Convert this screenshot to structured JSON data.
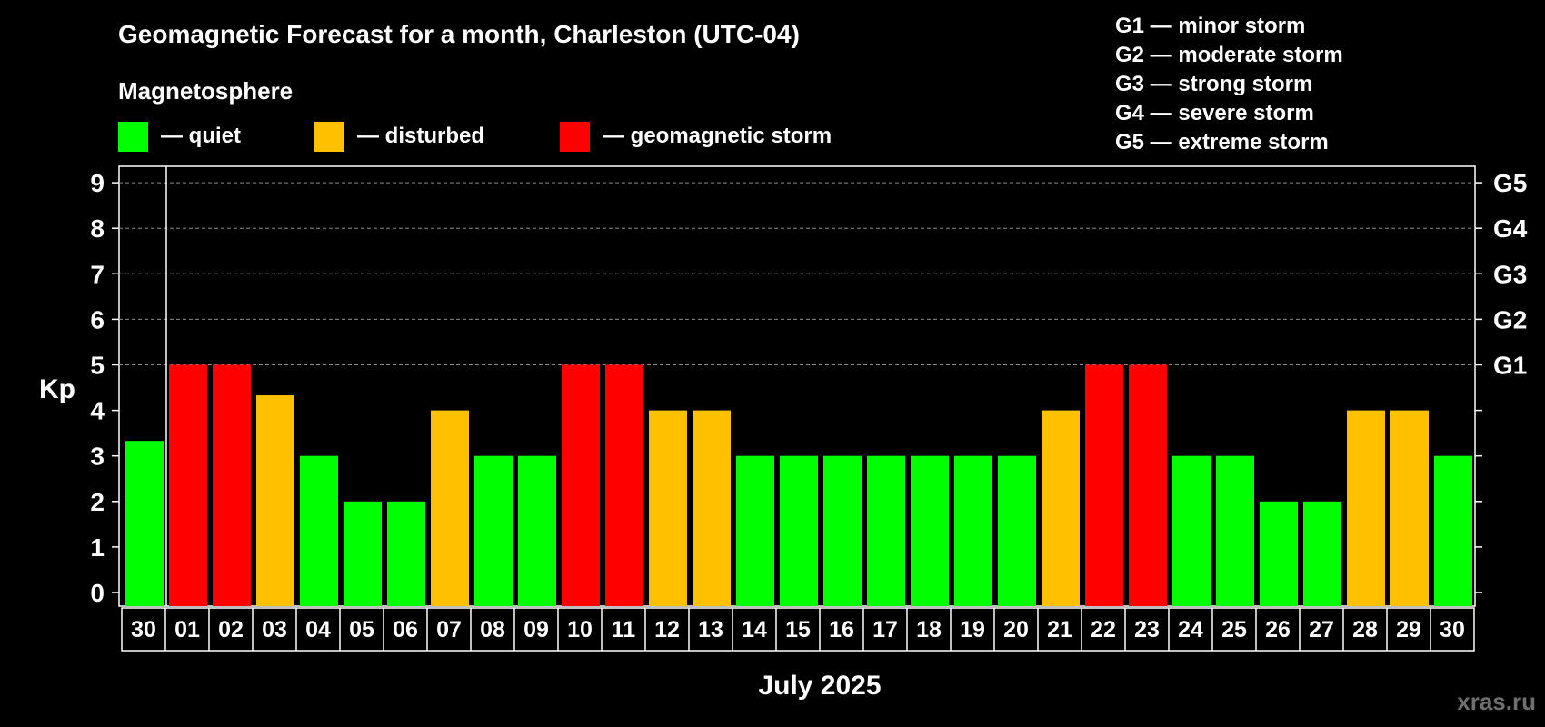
{
  "title": "Geomagnetic Forecast for a month, Charleston (UTC-04)",
  "legend": {
    "heading": "Magnetosphere",
    "items": [
      {
        "label": "— quiet",
        "color": "#00ff00"
      },
      {
        "label": "— disturbed",
        "color": "#ffc000"
      },
      {
        "label": "— geomagnetic storm",
        "color": "#ff0000"
      }
    ]
  },
  "storm_scale": [
    "G1 — minor storm",
    "G2 — moderate storm",
    "G3 — strong storm",
    "G4 — severe storm",
    "G5 — extreme storm"
  ],
  "watermark": "xras.ru",
  "chart_data": {
    "type": "bar",
    "title": "Geomagnetic Forecast for a month, Charleston (UTC-04)",
    "xlabel": "July 2025",
    "ylabel": "Kp",
    "ylim": [
      0,
      9
    ],
    "yticks": [
      "0",
      "1",
      "2",
      "3",
      "4",
      "5",
      "6",
      "7",
      "8",
      "9"
    ],
    "right_axis": [
      {
        "value": 5,
        "label": "G1"
      },
      {
        "value": 6,
        "label": "G2"
      },
      {
        "value": 7,
        "label": "G3"
      },
      {
        "value": 8,
        "label": "G4"
      },
      {
        "value": 9,
        "label": "G5"
      }
    ],
    "grid": true,
    "categories": [
      "30",
      "01",
      "02",
      "03",
      "04",
      "05",
      "06",
      "07",
      "08",
      "09",
      "10",
      "11",
      "12",
      "13",
      "14",
      "15",
      "16",
      "17",
      "18",
      "19",
      "20",
      "21",
      "22",
      "23",
      "24",
      "25",
      "26",
      "27",
      "28",
      "29",
      "30"
    ],
    "values": [
      3.33,
      5,
      5,
      4.33,
      3,
      2,
      2,
      4,
      3,
      3,
      5,
      5,
      4,
      4,
      3,
      3,
      3,
      3,
      3,
      3,
      3,
      4,
      5,
      5,
      3,
      3,
      2,
      2,
      4,
      4,
      3
    ],
    "colors": [
      "#00ff00",
      "#ff0000",
      "#ff0000",
      "#ffc000",
      "#00ff00",
      "#00ff00",
      "#00ff00",
      "#ffc000",
      "#00ff00",
      "#00ff00",
      "#ff0000",
      "#ff0000",
      "#ffc000",
      "#ffc000",
      "#00ff00",
      "#00ff00",
      "#00ff00",
      "#00ff00",
      "#00ff00",
      "#00ff00",
      "#00ff00",
      "#ffc000",
      "#ff0000",
      "#ff0000",
      "#00ff00",
      "#00ff00",
      "#00ff00",
      "#00ff00",
      "#ffc000",
      "#ffc000",
      "#00ff00"
    ]
  }
}
